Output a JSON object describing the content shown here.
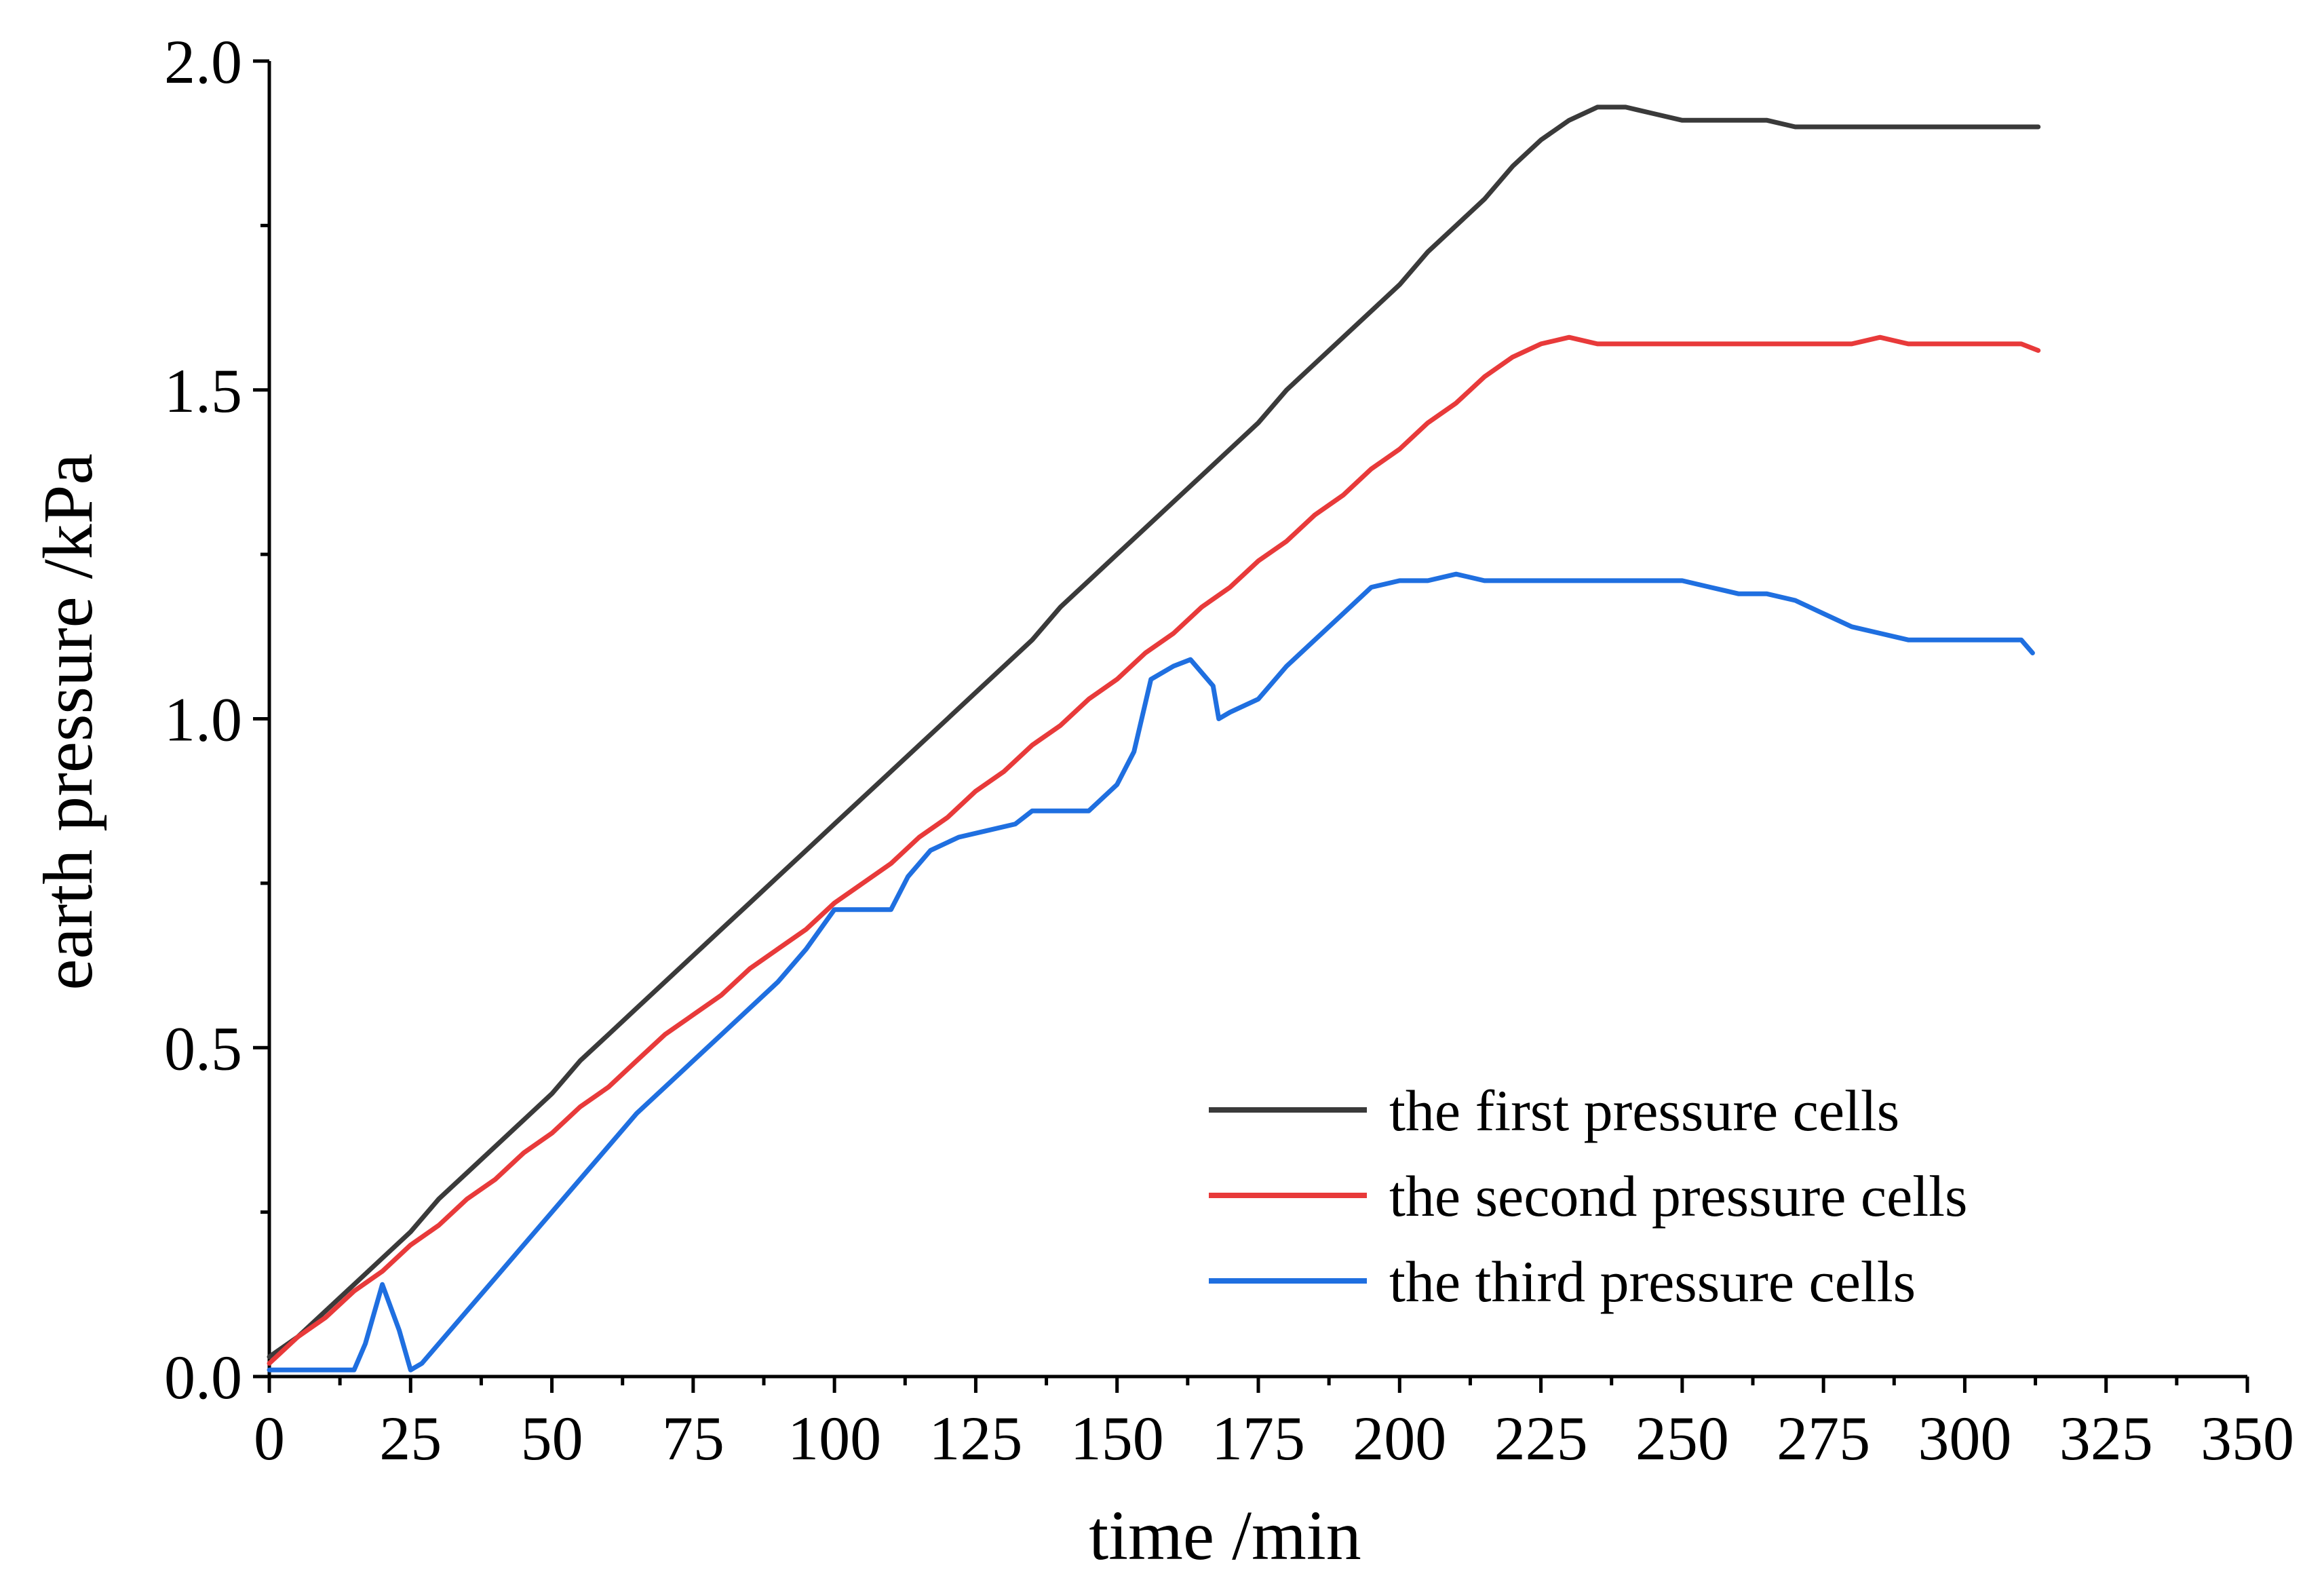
{
  "chart_data": {
    "type": "line",
    "title": "",
    "xlabel": "time /min",
    "ylabel": "earth pressure /kPa",
    "xlim": [
      0,
      350
    ],
    "ylim": [
      0,
      2.0
    ],
    "xticks": [
      0,
      25,
      50,
      75,
      100,
      125,
      150,
      175,
      200,
      225,
      250,
      275,
      300,
      325,
      350
    ],
    "xtick_labels": [
      "0",
      "25",
      "50",
      "75",
      "100",
      "125",
      "150",
      "175",
      "200",
      "225",
      "250",
      "275",
      "300",
      "325",
      "350"
    ],
    "yticks": [
      0.0,
      0.5,
      1.0,
      1.5,
      2.0
    ],
    "ytick_labels": [
      "0.0",
      "0.5",
      "1.0",
      "1.5",
      "2.0"
    ],
    "grid": false,
    "legend_position": "bottom-right",
    "series": [
      {
        "name": "the first pressure cells",
        "color": "#3a3a3a",
        "x": [
          0,
          5,
          10,
          15,
          20,
          25,
          30,
          35,
          40,
          45,
          50,
          55,
          60,
          65,
          70,
          75,
          80,
          85,
          90,
          95,
          100,
          105,
          110,
          115,
          120,
          125,
          130,
          135,
          140,
          145,
          150,
          155,
          160,
          165,
          170,
          175,
          180,
          185,
          190,
          195,
          200,
          205,
          210,
          215,
          220,
          225,
          230,
          235,
          240,
          245,
          250,
          255,
          260,
          265,
          270,
          275,
          280,
          285,
          290,
          295,
          300,
          305,
          310,
          313
        ],
        "y": [
          0.03,
          0.06,
          0.1,
          0.14,
          0.18,
          0.22,
          0.27,
          0.31,
          0.35,
          0.39,
          0.43,
          0.48,
          0.52,
          0.56,
          0.6,
          0.64,
          0.68,
          0.72,
          0.76,
          0.8,
          0.84,
          0.88,
          0.92,
          0.96,
          1.0,
          1.04,
          1.08,
          1.12,
          1.17,
          1.21,
          1.25,
          1.29,
          1.33,
          1.37,
          1.41,
          1.45,
          1.5,
          1.54,
          1.58,
          1.62,
          1.66,
          1.71,
          1.75,
          1.79,
          1.84,
          1.88,
          1.91,
          1.93,
          1.93,
          1.92,
          1.91,
          1.91,
          1.91,
          1.91,
          1.9,
          1.9,
          1.9,
          1.9,
          1.9,
          1.9,
          1.9,
          1.9,
          1.9,
          1.9
        ]
      },
      {
        "name": "the second pressure cells",
        "color": "#e83a3a",
        "x": [
          0,
          5,
          10,
          15,
          20,
          25,
          30,
          35,
          40,
          45,
          50,
          55,
          60,
          65,
          70,
          75,
          80,
          85,
          90,
          95,
          100,
          105,
          110,
          115,
          120,
          125,
          130,
          135,
          140,
          145,
          150,
          155,
          160,
          165,
          170,
          175,
          180,
          185,
          190,
          195,
          200,
          205,
          210,
          215,
          220,
          225,
          230,
          235,
          240,
          245,
          250,
          255,
          260,
          265,
          270,
          275,
          280,
          285,
          290,
          295,
          300,
          305,
          310,
          313
        ],
        "y": [
          0.02,
          0.06,
          0.09,
          0.13,
          0.16,
          0.2,
          0.23,
          0.27,
          0.3,
          0.34,
          0.37,
          0.41,
          0.44,
          0.48,
          0.52,
          0.55,
          0.58,
          0.62,
          0.65,
          0.68,
          0.72,
          0.75,
          0.78,
          0.82,
          0.85,
          0.89,
          0.92,
          0.96,
          0.99,
          1.03,
          1.06,
          1.1,
          1.13,
          1.17,
          1.2,
          1.24,
          1.27,
          1.31,
          1.34,
          1.38,
          1.41,
          1.45,
          1.48,
          1.52,
          1.55,
          1.57,
          1.58,
          1.57,
          1.57,
          1.57,
          1.57,
          1.57,
          1.57,
          1.57,
          1.57,
          1.57,
          1.57,
          1.58,
          1.57,
          1.57,
          1.57,
          1.57,
          1.57,
          1.56
        ]
      },
      {
        "name": "the third pressure cells",
        "color": "#1f6fe0",
        "x": [
          0,
          5,
          10,
          15,
          17,
          20,
          23,
          25,
          27,
          30,
          35,
          40,
          45,
          50,
          55,
          60,
          65,
          70,
          75,
          80,
          85,
          90,
          95,
          100,
          105,
          110,
          113,
          117,
          122,
          127,
          132,
          135,
          140,
          145,
          150,
          153,
          156,
          160,
          163,
          167,
          168,
          170,
          175,
          180,
          185,
          190,
          195,
          200,
          205,
          210,
          215,
          220,
          225,
          230,
          235,
          240,
          245,
          250,
          255,
          260,
          265,
          270,
          275,
          280,
          285,
          290,
          295,
          300,
          305,
          310,
          312
        ],
        "y": [
          0.01,
          0.01,
          0.01,
          0.01,
          0.05,
          0.14,
          0.07,
          0.01,
          0.02,
          0.05,
          0.1,
          0.15,
          0.2,
          0.25,
          0.3,
          0.35,
          0.4,
          0.44,
          0.48,
          0.52,
          0.56,
          0.6,
          0.65,
          0.71,
          0.71,
          0.71,
          0.76,
          0.8,
          0.82,
          0.83,
          0.84,
          0.86,
          0.86,
          0.86,
          0.9,
          0.95,
          1.06,
          1.08,
          1.09,
          1.05,
          1.0,
          1.01,
          1.03,
          1.08,
          1.12,
          1.16,
          1.2,
          1.21,
          1.21,
          1.22,
          1.21,
          1.21,
          1.21,
          1.21,
          1.21,
          1.21,
          1.21,
          1.21,
          1.2,
          1.19,
          1.19,
          1.18,
          1.16,
          1.14,
          1.13,
          1.12,
          1.12,
          1.12,
          1.12,
          1.12,
          1.1
        ]
      }
    ]
  }
}
